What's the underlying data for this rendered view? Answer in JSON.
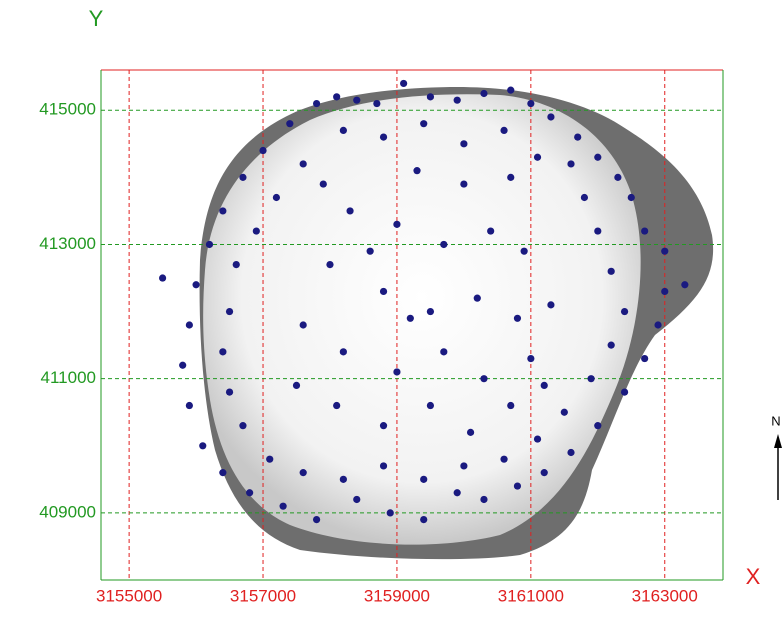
{
  "chart_data": {
    "type": "scatter",
    "x_axis_label": "X",
    "y_axis_label": "Y",
    "north_label": "N",
    "color": "#1a1a80",
    "x_tick_color": "#e02020",
    "y_tick_color": "#229922",
    "xlim": [
      3154580,
      3163870
    ],
    "ylim": [
      408000,
      415600
    ],
    "xticks": [
      3155000,
      3157000,
      3159000,
      3161000,
      3163000
    ],
    "yticks": [
      409000,
      411000,
      413000,
      415000
    ],
    "grid": true,
    "x": [
      3157800,
      3158100,
      3158400,
      3158700,
      3159100,
      3159500,
      3159900,
      3160300,
      3160700,
      3161000,
      3161300,
      3161700,
      3162000,
      3162300,
      3157400,
      3157000,
      3156700,
      3156400,
      3156200,
      3156000,
      3155900,
      3155800,
      3155900,
      3156100,
      3156400,
      3156800,
      3157300,
      3157800,
      3158400,
      3158900,
      3159400,
      3159900,
      3160300,
      3160800,
      3161200,
      3161600,
      3162000,
      3162400,
      3162700,
      3162900,
      3163000,
      3163300,
      3163000,
      3162700,
      3162500,
      3155500,
      3158200,
      3158800,
      3159400,
      3160000,
      3160600,
      3161100,
      3161600,
      3157600,
      3157200,
      3156900,
      3156600,
      3156500,
      3156400,
      3156500,
      3156700,
      3157100,
      3157600,
      3158200,
      3158800,
      3159400,
      3160000,
      3160600,
      3161100,
      3161500,
      3161900,
      3162200,
      3162400,
      3162200,
      3162000,
      3161800,
      3158300,
      3159000,
      3159700,
      3160400,
      3160900,
      3158000,
      3158800,
      3159500,
      3160200,
      3160800,
      3161300,
      3157600,
      3158200,
      3159000,
      3159700,
      3160300,
      3161000,
      3157500,
      3158100,
      3158800,
      3159500,
      3160100,
      3160700,
      3161200,
      3159200,
      3158600,
      3157900,
      3159300,
      3160000,
      3160700
    ],
    "values": [
      415100,
      415200,
      415150,
      415100,
      415400,
      415200,
      415150,
      415250,
      415300,
      415100,
      414900,
      414600,
      414300,
      414000,
      414800,
      414400,
      414000,
      413500,
      413000,
      412400,
      411800,
      411200,
      410600,
      410000,
      409600,
      409300,
      409100,
      408900,
      409200,
      409000,
      408900,
      409300,
      409200,
      409400,
      409600,
      409900,
      410300,
      410800,
      411300,
      411800,
      412300,
      412400,
      412900,
      413200,
      413700,
      412500,
      414700,
      414600,
      414800,
      414500,
      414700,
      414300,
      414200,
      414200,
      413700,
      413200,
      412700,
      412000,
      411400,
      410800,
      410300,
      409800,
      409600,
      409500,
      409700,
      409500,
      409700,
      409800,
      410100,
      410500,
      411000,
      411500,
      412000,
      412600,
      413200,
      413700,
      413500,
      413300,
      413000,
      413200,
      412900,
      412700,
      412300,
      412000,
      412200,
      411900,
      412100,
      411800,
      411400,
      411100,
      411400,
      411000,
      411300,
      410900,
      410600,
      410300,
      410600,
      410200,
      410600,
      410900,
      411900,
      412900,
      413900,
      414100,
      413900,
      414000
    ]
  }
}
